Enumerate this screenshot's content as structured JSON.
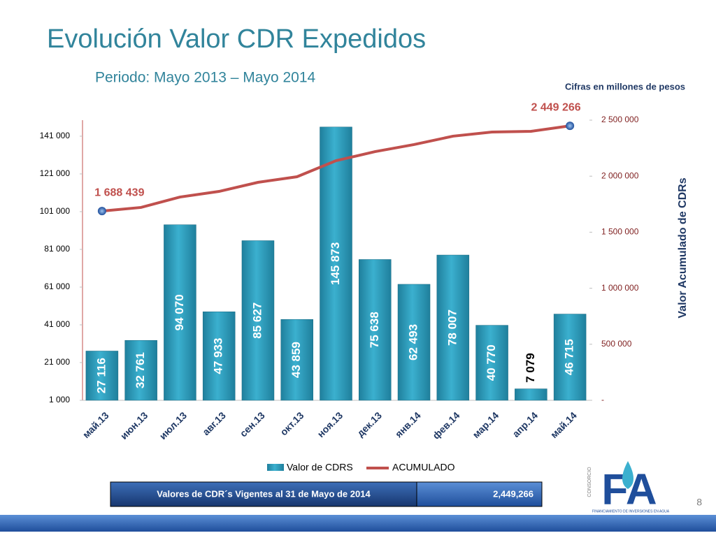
{
  "chart_data": {
    "type": "bar",
    "title": "Evolución Valor CDR Expedidos",
    "subtitle": "Periodo: Mayo 2013 – Mayo 2014",
    "note": "Cifras en millones de pesos",
    "y2_label": "Valor Acumulado de CDRs",
    "categories": [
      "май.13",
      "июн.13",
      "июл.13",
      "авг.13",
      "сен.13",
      "окт.13",
      "ноя.13",
      "дек.13",
      "янв.14",
      "фев.14",
      "мар.14",
      "апр.14",
      "май.14"
    ],
    "series": [
      {
        "name": "Valor de CDRS",
        "type": "bar",
        "color": "#2b9bbb",
        "values": [
          27116,
          32761,
          94070,
          47933,
          85627,
          43859,
          145873,
          75638,
          62493,
          78007,
          40770,
          7079,
          46715
        ],
        "value_labels": [
          "27 116",
          "32 761",
          "94 070",
          "47 933",
          "85 627",
          "43 859",
          "145 873",
          "75 638",
          "62 493",
          "78 007",
          "40 770",
          "7 079",
          "46 715"
        ]
      },
      {
        "name": "ACUMULADO",
        "type": "line",
        "axis": "y2",
        "color": "#c0504d",
        "values": [
          1688439,
          1721000,
          1814000,
          1864000,
          1945000,
          1995000,
          2138000,
          2219000,
          2282000,
          2357000,
          2394000,
          2400000,
          2449266
        ],
        "value_labels": [
          "1 688 439",
          null,
          null,
          null,
          null,
          null,
          null,
          null,
          null,
          null,
          null,
          null,
          "2 449 266"
        ]
      }
    ],
    "ylim": [
      1000,
      149500
    ],
    "yticks": [
      {
        "value": 1000,
        "label": "1 000"
      },
      {
        "value": 21000,
        "label": "21 000"
      },
      {
        "value": 41000,
        "label": "41 000"
      },
      {
        "value": 61000,
        "label": "61 000"
      },
      {
        "value": 81000,
        "label": "81 000"
      },
      {
        "value": 101000,
        "label": "101 000"
      },
      {
        "value": 121000,
        "label": "121 000"
      },
      {
        "value": 141000,
        "label": "141 000"
      }
    ],
    "y2lim": [
      0,
      2500000
    ],
    "y2ticks": [
      {
        "value": 0,
        "label": "-"
      },
      {
        "value": 500000,
        "label": "500 000"
      },
      {
        "value": 1000000,
        "label": "1 000 000"
      },
      {
        "value": 1500000,
        "label": "1 500 000"
      },
      {
        "value": 2000000,
        "label": "2 000 000"
      },
      {
        "value": 2500000,
        "label": "2 500 000"
      }
    ],
    "grid": false
  },
  "footer": {
    "label": "Valores de CDR´s Vigentes al 31 de Mayo de 2014",
    "value": "2,449,266",
    "page": "8"
  },
  "logo": {
    "name": "FA",
    "top": "CONSORCIO",
    "bottom": "FINANCIAMIENTO DE INVERSIONES EN AGUA"
  }
}
